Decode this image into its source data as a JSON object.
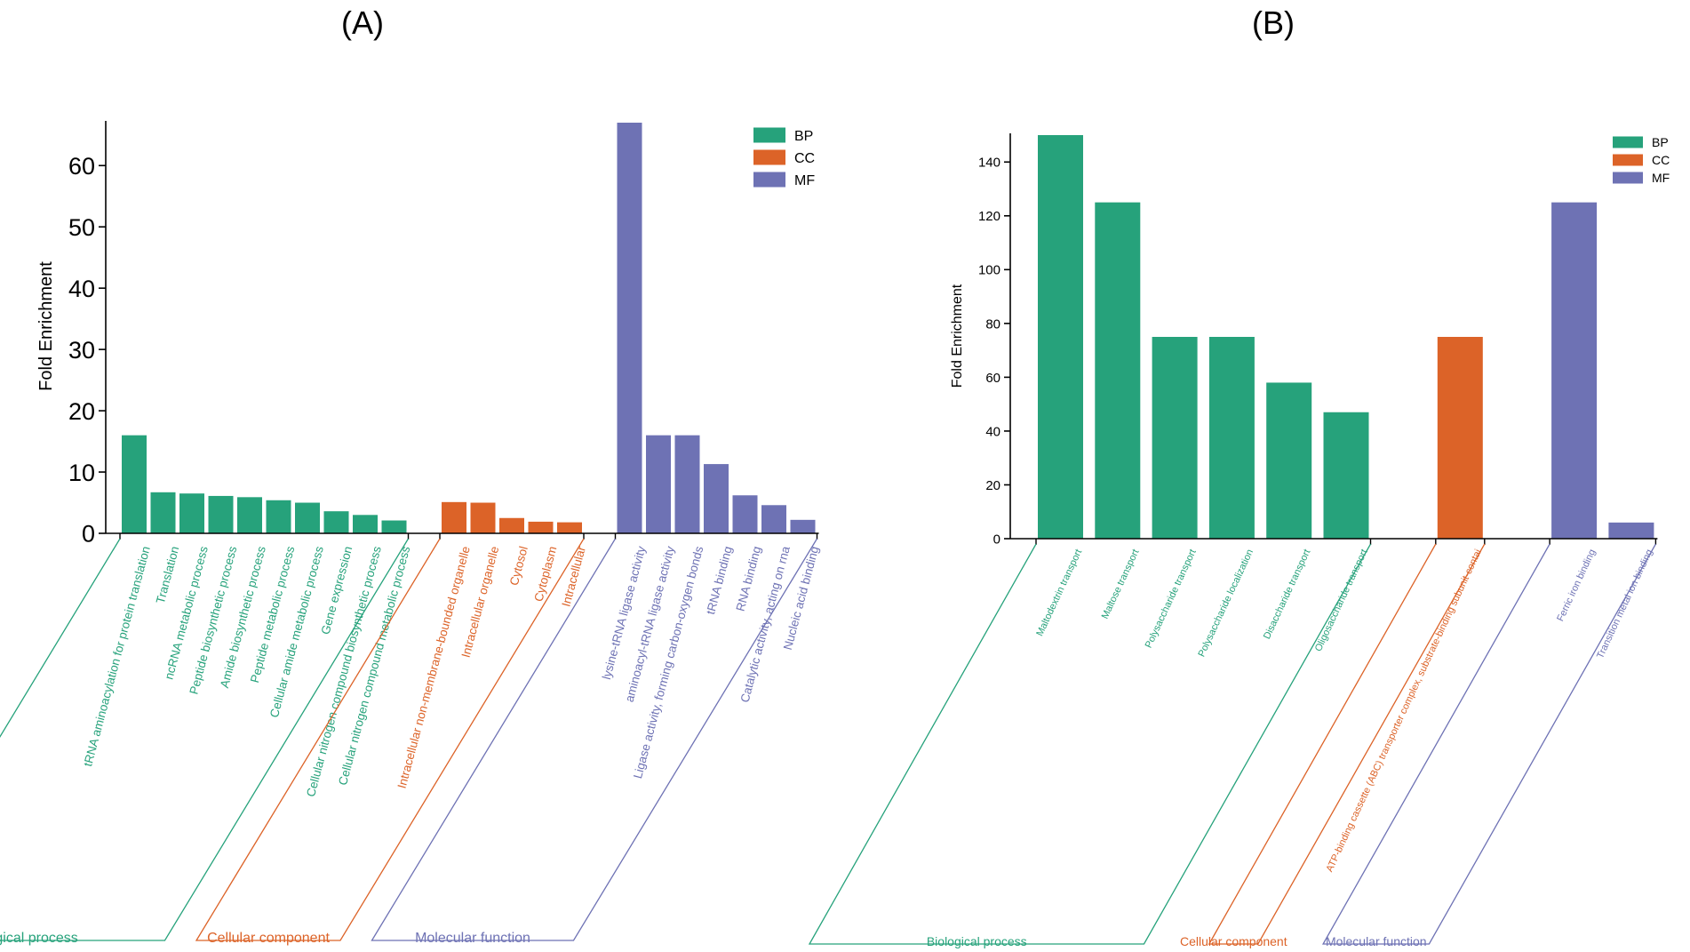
{
  "colors": {
    "BP": "#26a27b",
    "CC": "#dc6328",
    "MF": "#6e72b4",
    "axis": "#000000"
  },
  "chart_data": [
    {
      "type": "bar",
      "panel_label": "(A)",
      "ylabel": "Fold Enrichment",
      "ylim": [
        0,
        67
      ],
      "yticks": [
        0,
        10,
        20,
        30,
        40,
        50,
        60
      ],
      "legend": [
        "BP",
        "CC",
        "MF"
      ],
      "legend_position": "top-right",
      "group_labels": [
        "Biological process",
        "Cellular component",
        "Molecular function"
      ],
      "series": [
        {
          "name": "BP",
          "categories": [
            "tRNA aminoacylation for protein translation",
            "Translation",
            "ncRNA metabolic process",
            "Peptide biosynthetic process",
            "Amide biosynthetic process",
            "Peptide metabolic process",
            "Cellular amide metabolic process",
            "Gene expression",
            "Cellular nitrogen compound biosynthetic process",
            "Cellular nitrogen compound metabolic process"
          ],
          "values": [
            16,
            6.7,
            6.5,
            6.1,
            5.9,
            5.4,
            5.0,
            3.6,
            3.0,
            2.1
          ]
        },
        {
          "name": "CC",
          "categories": [
            "Intracellular non-membrane-bounded organelle",
            "Intracellular organelle",
            "Cytosol",
            "Cytoplasm",
            "Intracellular"
          ],
          "values": [
            5.1,
            5.0,
            2.5,
            1.9,
            1.8
          ]
        },
        {
          "name": "MF",
          "categories": [
            "lysine-tRNA ligase activity",
            "aminoacyl-tRNA ligase activity",
            "Ligase activity, forming carbon-oxygen bonds",
            "tRNA binding",
            "RNA binding",
            "Catalytic activity, acting on rna",
            "Nucleic acid binding"
          ],
          "values": [
            67,
            16,
            16,
            11.3,
            6.2,
            4.6,
            2.2
          ]
        }
      ]
    },
    {
      "type": "bar",
      "panel_label": "(B)",
      "ylabel": "Fold Enrichment",
      "ylim": [
        0,
        150
      ],
      "yticks": [
        0,
        20,
        40,
        60,
        80,
        100,
        120,
        140
      ],
      "legend": [
        "BP",
        "CC",
        "MF"
      ],
      "legend_position": "top-right",
      "group_labels": [
        "Biological process",
        "Cellular component",
        "Molecular function"
      ],
      "series": [
        {
          "name": "BP",
          "categories": [
            "Maltodextrin transport",
            "Maltose transport",
            "Polysaccharide transport",
            "Polysaccharide localization",
            "Disaccharide transport",
            "Oligosaccharide transport"
          ],
          "values": [
            150,
            125,
            75,
            75,
            58,
            47
          ]
        },
        {
          "name": "CC",
          "categories": [
            "ATP-binding cassette (ABC) transporter complex, substrate-binding subunit-contai"
          ],
          "values": [
            75
          ]
        },
        {
          "name": "MF",
          "categories": [
            "Ferric iron binding",
            "Transition metal ion binding"
          ],
          "values": [
            125,
            6
          ]
        }
      ]
    }
  ]
}
